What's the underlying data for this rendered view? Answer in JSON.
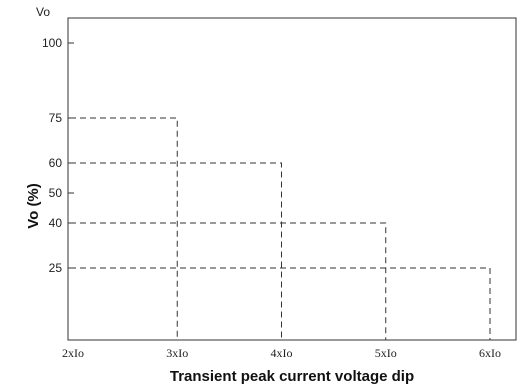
{
  "chart_data": {
    "type": "line",
    "title": "",
    "corner_label": "Vo",
    "xlabel": "Transient peak current  voltage dip",
    "ylabel": "Vo (%)",
    "x_categories": [
      "2xIo",
      "3xIo",
      "4xIo",
      "5xIo",
      "6xIo"
    ],
    "y_ticks": [
      25,
      40,
      50,
      60,
      75,
      100
    ],
    "ylim": [
      0,
      110
    ],
    "grid": false,
    "points": [
      {
        "x": "3xIo",
        "y": 75
      },
      {
        "x": "4xIo",
        "y": 60
      },
      {
        "x": "5xIo",
        "y": 40
      },
      {
        "x": "6xIo",
        "y": 25
      }
    ]
  }
}
